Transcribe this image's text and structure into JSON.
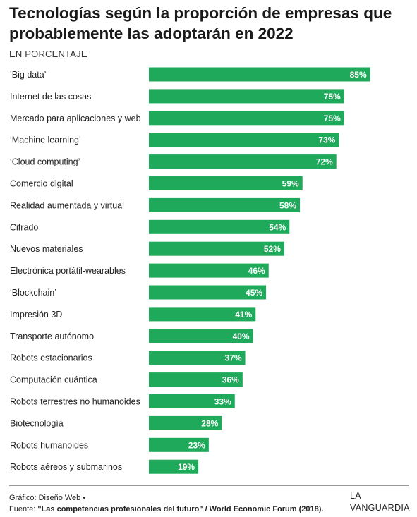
{
  "header": {
    "title": "Tecnologías según la proporción de empresas que probablemente las adoptarán en 2022",
    "subtitle": "EN PORCENTAJE"
  },
  "chart_data": {
    "type": "bar",
    "orientation": "horizontal",
    "title": "Tecnologías según la proporción de empresas que probablemente las adoptarán en 2022",
    "subtitle": "EN PORCENTAJE",
    "xlim": [
      0,
      100
    ],
    "bar_color": "#1eaa5a",
    "label_color": "#ffffff",
    "grid": false,
    "categories": [
      "‘Big data’",
      "Internet de las cosas",
      "Mercado para aplicaciones y web",
      "‘Machine learning’",
      "‘Cloud computing’",
      "Comercio digital",
      "Realidad aumentada y virtual",
      "Cifrado",
      "Nuevos materiales",
      "Electrónica portátil-wearables",
      "‘Blockchain’",
      "Impresión 3D",
      "Transporte autónomo",
      "Robots estacionarios",
      "Computación cuántica",
      "Robots terrestres no humanoides",
      "Biotecnología",
      "Robots humanoides",
      "Robots aéreos y submarinos"
    ],
    "values": [
      85,
      75,
      75,
      73,
      72,
      59,
      58,
      54,
      52,
      46,
      45,
      41,
      40,
      37,
      36,
      33,
      28,
      23,
      19
    ],
    "value_labels": [
      "85%",
      "75%",
      "75%",
      "73%",
      "72%",
      "59%",
      "58%",
      "54%",
      "52%",
      "46%",
      "45%",
      "41%",
      "40%",
      "37%",
      "36%",
      "33%",
      "28%",
      "23%",
      "19%"
    ]
  },
  "footer": {
    "credit": "Gráfico: Diseño Web •",
    "source_prefix": "Fuente: ",
    "source_title": "\"Las competencias profesionales del futuro\" / World Economic Forum (2018).",
    "logo_line1": "LA",
    "logo_line2": "VANGUARDIA"
  }
}
